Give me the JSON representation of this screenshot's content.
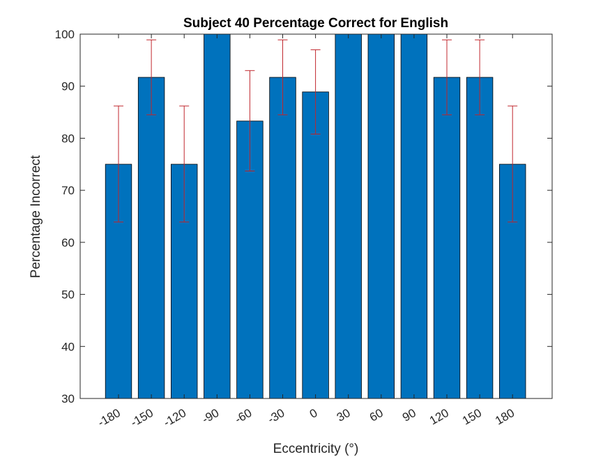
{
  "chart_data": {
    "type": "bar",
    "title": "Subject 40 Percentage Correct for English",
    "xlabel": "Eccentricity (°)",
    "ylabel": "Percentage Incorrect",
    "categories": [
      "-180",
      "-150",
      "-120",
      "-90",
      "-60",
      "-30",
      "0",
      "30",
      "60",
      "90",
      "120",
      "150",
      "180"
    ],
    "values": [
      75,
      91.7,
      75,
      100,
      83.3,
      91.7,
      88.9,
      100,
      100,
      100,
      91.7,
      91.7,
      75
    ],
    "error_upper": [
      86.2,
      98.9,
      86.2,
      100,
      93,
      98.9,
      97,
      100,
      100,
      100,
      98.9,
      98.9,
      86.2
    ],
    "error_lower": [
      63.9,
      84.5,
      63.9,
      100,
      73.7,
      84.5,
      80.8,
      100,
      100,
      100,
      84.5,
      84.5,
      63.9
    ],
    "ylim": [
      30,
      100
    ],
    "yticks": [
      "30",
      "40",
      "50",
      "60",
      "70",
      "80",
      "90",
      "100"
    ],
    "x_tick_rotation": 30,
    "grid": false,
    "colors": {
      "bar_fill": "#0072BD",
      "bar_edge": "#000000",
      "error_bar": "#C0272D",
      "axis": "#262626"
    }
  }
}
